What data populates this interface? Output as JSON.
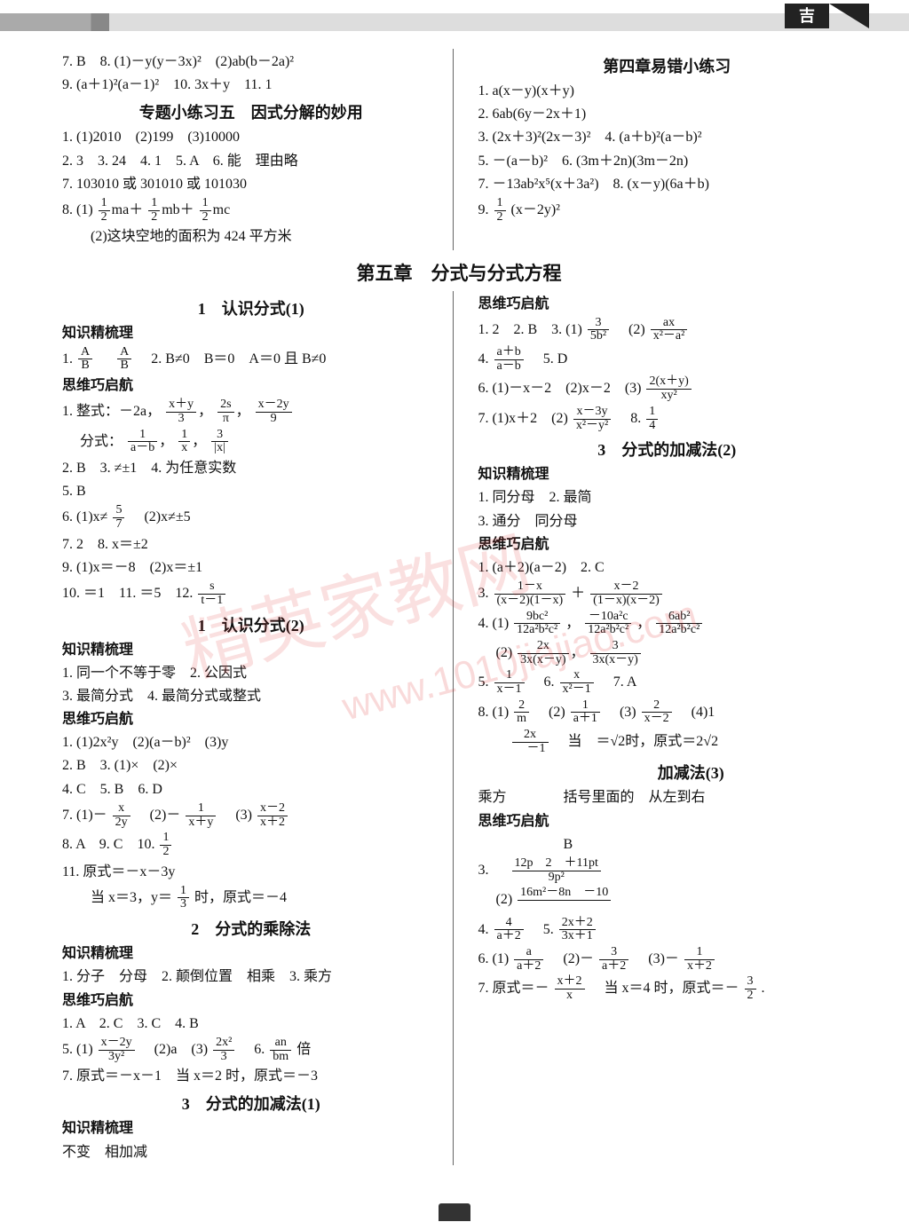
{
  "header": {
    "logo": "吉"
  },
  "watermark": {
    "main": "精英家教网",
    "url": "www.1010jiajiao.com"
  },
  "left": {
    "pre_lines": [
      "7. B　8. (1)－y(y－3x)²　(2)ab(b－2a)²",
      "9. (a＋1)²(a－1)²　10. 3x＋y　11. 1"
    ],
    "sec5_title": "专题小练习五　因式分解的妙用",
    "sec5_lines": [
      "1. (1)2010　(2)199　(3)10000",
      "2. 3　3. 24　4. 1　5. A　6. 能　理由略",
      "7. 103010 或 301010 或 101030"
    ],
    "sec5_q8_1_prefix": "8. (1)",
    "sec5_q8_1_suffix": "",
    "sec5_q8_2": "　　(2)这块空地的面积为 424 平方米",
    "chapter5": "第五章　分式与分式方程",
    "s1_title": "1　认识分式(1)",
    "s1_k1": "知识精梳理",
    "s1_k1_l1_prefix": "1. ",
    "s1_k1_l1_mid": "　",
    "s1_k1_l1_suffix": "　2. B≠0　B＝0　A＝0 且 B≠0",
    "s1_h": "思维巧启航",
    "s1_h_l1_prefix": "1. 整式：－2a，",
    "s1_h_l1_mid": "，",
    "s1_h_l2_prefix": "　 分式：",
    "s1_h_lines": [
      "2. B　3. ≠±1　4. 为任意实数",
      "5. B"
    ],
    "s1_h_l6_prefix": "6. (1)x≠",
    "s1_h_l6_suffix": "　(2)x≠±5",
    "s1_h_lines2": [
      "7. 2　8. x＝±2",
      "9. (1)x＝－8　(2)x＝±1"
    ],
    "s1_h_l10_prefix": "10. ＝1　11. ＝5　12. ",
    "s2_title": "1　认识分式(2)",
    "s2_k": "知识精梳理",
    "s2_k_lines": [
      "1. 同一个不等于零　2. 公因式",
      "3. 最简分式　4. 最简分式或整式"
    ],
    "s2_h": "思维巧启航",
    "s2_h_lines": [
      "1. (1)2x²y　(2)(a－b)²　(3)y",
      "2. B　3. (1)×　(2)×",
      "4. C　5. B　6. D"
    ],
    "s2_h_l7_prefix": "7. (1)－",
    "s2_h_l7_m1": "　(2)－",
    "s2_h_l7_m2": "　(3)",
    "s2_h_l8_prefix": "8. A　9. C　10. ",
    "s2_h_l11": "11. 原式＝－x－3y",
    "s2_h_l11b_prefix": "　　当 x＝3，y＝",
    "s2_h_l11b_suffix": "时，原式＝－4",
    "s3_title": "2　分式的乘除法",
    "s3_k": "知识精梳理",
    "s3_k_lines": [
      "1. 分子　分母　2. 颠倒位置　相乘　3. 乘方"
    ],
    "s3_h": "思维巧启航",
    "s3_h_l1": "1. A　2. C　3. C　4. B",
    "s3_h_l5_prefix": "5. (1)",
    "s3_h_l5_m1": "　(2)a　(3)",
    "s3_h_l5_m2": "　6. ",
    "s3_h_l5_suffix": "倍",
    "s3_h_l7": "7. 原式＝－x－1　当 x＝2 时，原式＝－3",
    "s4_title": "3　分式的加减法(1)",
    "s4_k": "知识精梳理",
    "s4_k_l1": "不变　相加减"
  },
  "right": {
    "err_title": "第四章易错小练习",
    "err_lines": [
      "1. a(x－y)(x＋y)",
      "2. 6ab(6y－2x＋1)",
      "3. (2x＋3)²(2x－3)²　4. (a＋b)²(a－b)²",
      "5. －(a－b)²　6. (3m＋2n)(3m－2n)",
      "7. －13ab²x⁵(x＋3a²)　8. (x－y)(6a＋b)"
    ],
    "err_l9_prefix": "9. ",
    "err_l9_suffix": "(x－2y)²",
    "r_h1": "思维巧启航",
    "r_l1_prefix": "1. 2　2. B　3. (1)",
    "r_l1_m1": "　(2)",
    "r_l4_prefix": "4. ",
    "r_l4_suffix": "　5. D",
    "r_l6_prefix": "6. (1)－x－2　(2)x－2　(3)",
    "r_l7_prefix": "7. (1)x＋2　(2)",
    "r_l7_m1": "　8. ",
    "r_s3_title": "3　分式的加减法(2)",
    "r_s3_k": "知识精梳理",
    "r_s3_k_lines": [
      "1. 同分母　2. 最简",
      "3. 通分　同分母"
    ],
    "r_s3_h": "思维巧启航",
    "r_s3_h_l1": "1. (a＋2)(a－2)　2. C",
    "r_s3_h_l3_prefix": "3. ",
    "r_s3_h_l3_mid": "＋",
    "r_s3_h_l4_prefix": "4. (1)",
    "r_s3_h_l4_m": "，",
    "r_s3_h_l4b_prefix": "　 (2)",
    "r_s3_h_l5_prefix": "5. ",
    "r_s3_h_l5_m": "　6. ",
    "r_s3_h_l5_suffix": "　7. A",
    "r_s3_h_l8_prefix": "8. (1) ",
    "r_s3_h_l8_m1": "　(2)",
    "r_s3_h_l8_m2": "　(3)",
    "r_s3_h_l8_suffix": "　(4)1",
    "r_s3_h_l8b_prefix": "　　",
    "r_s3_h_l8b_mid": "　当　＝√2时，原式＝2√2",
    "r_s4_title": "　　　加减法(3)",
    "r_s4_l1": "乘方　　　　括号里面的　从左到右",
    "r_s4_h": "思维巧启航",
    "r_s4_h_l1": "　　　　　　B",
    "r_s4_h_l3_prefix": "3. 　",
    "r_s4_h_l3b_prefix": "　 (2)",
    "r_s4_h_l4_prefix": "4. ",
    "r_s4_h_l4_m": "　5. ",
    "r_s4_h_l6_prefix": "6. (1)",
    "r_s4_h_l6_m1": "　(2)－",
    "r_s4_h_l6_m2": "　(3)－",
    "r_s4_h_l7_prefix": "7. 原式＝－",
    "r_s4_h_l7_mid": "　当 x＝4 时，原式＝－",
    "r_s4_h_l7_suffix": " ."
  }
}
